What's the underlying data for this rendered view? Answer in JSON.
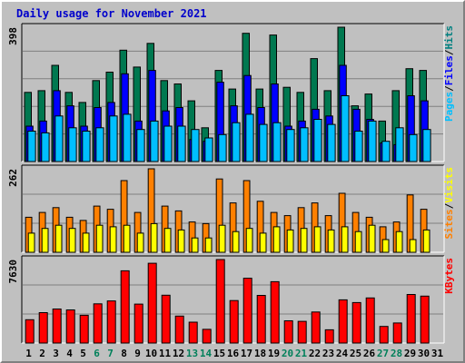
{
  "chart_data": {
    "type": "bar",
    "title": "Daily usage for November 2021",
    "categories": [
      "1",
      "2",
      "3",
      "4",
      "5",
      "6",
      "7",
      "8",
      "9",
      "10",
      "11",
      "12",
      "13",
      "14",
      "15",
      "16",
      "17",
      "18",
      "19",
      "20",
      "21",
      "22",
      "23",
      "24",
      "25",
      "26",
      "27",
      "28",
      "29",
      "30",
      "31"
    ],
    "weekend_days": [
      "6",
      "7",
      "13",
      "14",
      "20",
      "21",
      "27",
      "28"
    ],
    "panels": [
      {
        "id": "hits-files-pages",
        "max_label": "398",
        "ymax": 398,
        "right_labels": [
          "Pages",
          "Files",
          "Hits"
        ],
        "series": [
          {
            "name": "Hits",
            "color": "#007850",
            "values": [
              205,
              210,
              285,
              205,
              175,
              240,
              265,
              330,
              280,
              350,
              240,
              230,
              180,
              100,
              270,
              215,
              380,
              215,
              375,
              220,
              205,
              305,
              210,
              398,
              165,
              200,
              120,
              210,
              275,
              270,
              0
            ]
          },
          {
            "name": "Files",
            "color": "#0000ff",
            "values": [
              105,
              120,
              210,
              165,
              105,
              160,
              175,
              260,
              120,
              270,
              150,
              160,
              65,
              60,
              235,
              165,
              255,
              160,
              230,
              105,
              120,
              155,
              135,
              285,
              155,
              125,
              55,
              50,
              195,
              180,
              0
            ]
          },
          {
            "name": "Pages",
            "color": "#00bfff",
            "values": [
              90,
              85,
              135,
              100,
              90,
              100,
              135,
              140,
              95,
              120,
              105,
              105,
              95,
              70,
              80,
              115,
              140,
              110,
              115,
              95,
              100,
              125,
              110,
              195,
              90,
              120,
              60,
              100,
              80,
              95,
              0
            ]
          }
        ]
      },
      {
        "id": "visits-sites",
        "max_label": "262",
        "ymax": 262,
        "right_labels": [
          "Sites",
          "Visits"
        ],
        "series": [
          {
            "name": "Visits",
            "color": "#ff8000",
            "values": [
              110,
              125,
              140,
              110,
              100,
              145,
              135,
              225,
              125,
              262,
              145,
              130,
              95,
              90,
              230,
              155,
              225,
              160,
              125,
              115,
              140,
              155,
              115,
              185,
              125,
              110,
              80,
              95,
              180,
              135,
              0
            ]
          },
          {
            "name": "Sites",
            "color": "#ffff00",
            "values": [
              60,
              75,
              85,
              75,
              60,
              85,
              80,
              85,
              60,
              90,
              75,
              70,
              45,
              45,
              85,
              65,
              75,
              60,
              80,
              70,
              75,
              80,
              70,
              80,
              65,
              85,
              40,
              65,
              40,
              70,
              0
            ]
          }
        ]
      },
      {
        "id": "kbytes",
        "max_label": "7630",
        "ymax": 7630,
        "right_labels": [
          "KBytes"
        ],
        "series": [
          {
            "name": "KBytes",
            "color": "#ff0000",
            "values": [
              2130,
              2780,
              3110,
              3030,
              2540,
              3580,
              3850,
              6600,
              3560,
              7290,
              4370,
              2460,
              1910,
              1250,
              7630,
              3880,
              5920,
              4350,
              5610,
              2030,
              1980,
              2840,
              1210,
              3950,
              3700,
              4120,
              1520,
              1830,
              4440,
              4290,
              0
            ]
          }
        ]
      }
    ]
  }
}
